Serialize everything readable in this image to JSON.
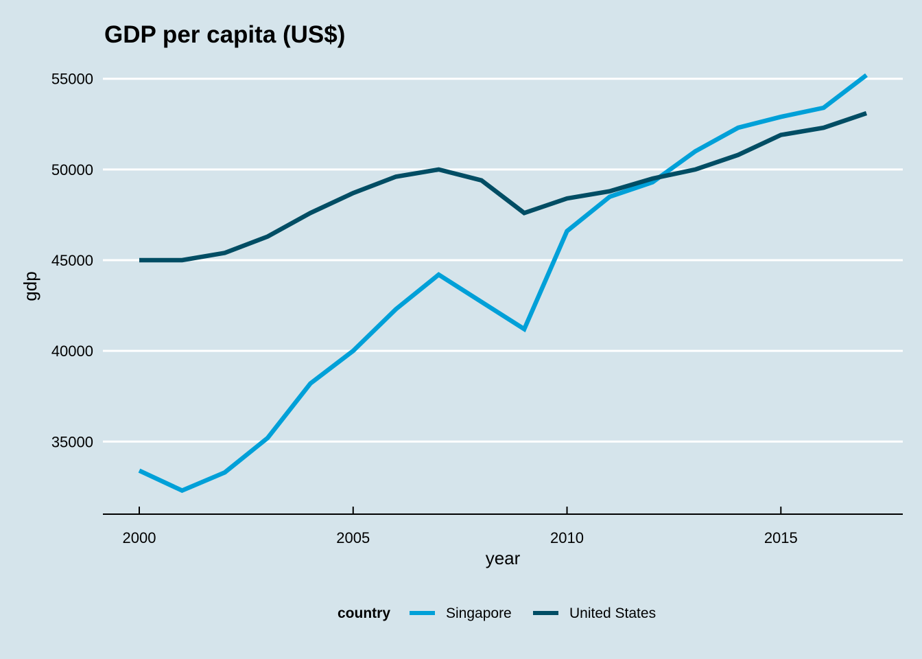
{
  "chart_data": {
    "type": "line",
    "title": "GDP per capita (US$)",
    "xlabel": "year",
    "ylabel": "gdp",
    "xlim": [
      1999.15,
      2017.85
    ],
    "ylim": [
      31000,
      56200
    ],
    "x_ticks": [
      2000,
      2005,
      2010,
      2015
    ],
    "x_tick_labels": [
      "2000",
      "2005",
      "2010",
      "2015"
    ],
    "y_ticks": [
      35000,
      40000,
      45000,
      50000,
      55000
    ],
    "y_tick_labels": [
      "35000",
      "40000",
      "45000",
      "50000",
      "55000"
    ],
    "grid": "horizontal-major",
    "legend": {
      "title": "country",
      "placement": "bottom",
      "entries": [
        "Singapore",
        "United States"
      ]
    },
    "x": [
      2000,
      2001,
      2002,
      2003,
      2004,
      2005,
      2006,
      2007,
      2008,
      2009,
      2010,
      2011,
      2012,
      2013,
      2014,
      2015,
      2016,
      2017
    ],
    "series": [
      {
        "name": "Singapore",
        "color": "#00a0d8",
        "values": [
          33400,
          32300,
          33300,
          35200,
          38200,
          40000,
          42300,
          44200,
          42700,
          41200,
          46600,
          48500,
          49300,
          51000,
          52300,
          52900,
          53400,
          55200
        ]
      },
      {
        "name": "United States",
        "color": "#014d64",
        "values": [
          45000,
          45000,
          45400,
          46300,
          47600,
          48700,
          49600,
          50000,
          49400,
          47600,
          48400,
          48800,
          49500,
          50000,
          50800,
          51900,
          52300,
          53100
        ]
      }
    ]
  },
  "colors": {
    "background": "#d5e4eb",
    "grid": "#ffffff",
    "text": "#000000"
  }
}
